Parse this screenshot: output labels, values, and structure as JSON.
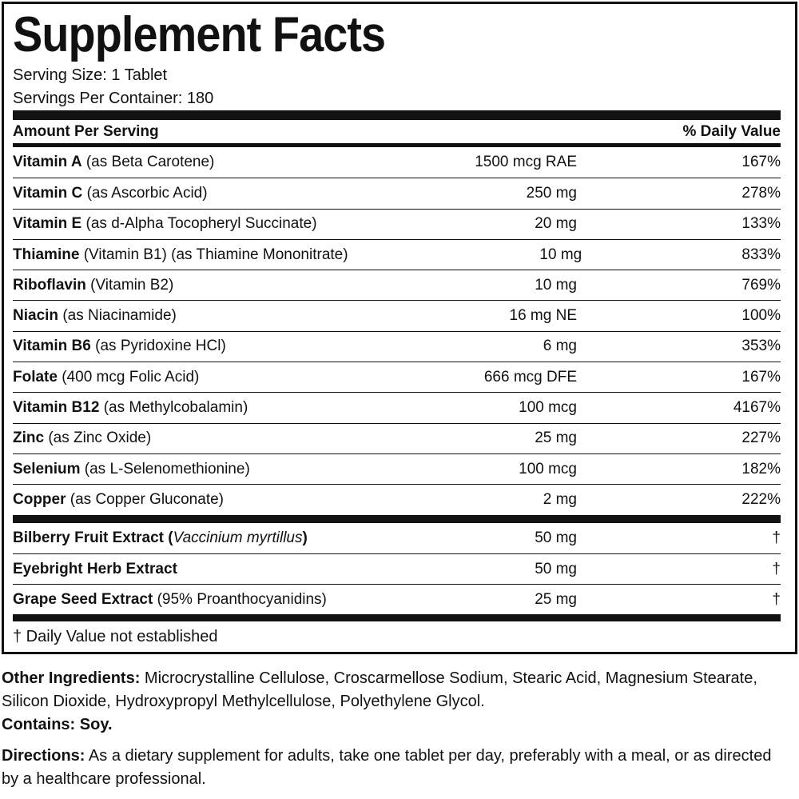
{
  "title": "Supplement Facts",
  "serving_size": "Serving Size: 1 Tablet",
  "servings_per_container": "Servings Per Container: 180",
  "table": {
    "header": [
      "Amount Per Serving",
      "% Daily Value"
    ],
    "groups": [
      [
        {
          "name": "Vitamin A",
          "detail": "(as Beta Carotene)",
          "amount": "1500 mcg RAE",
          "dv": "167%"
        },
        {
          "name": "Vitamin C",
          "detail": "(as Ascorbic Acid)",
          "amount": "250 mg",
          "dv": "278%"
        },
        {
          "name": "Vitamin E",
          "detail": "(as d-Alpha Tocopheryl Succinate)",
          "amount": "20 mg",
          "dv": "133%"
        },
        {
          "name": "Thiamine",
          "detail": "(Vitamin B1) (as Thiamine Mononitrate)",
          "amount": "10 mg",
          "dv": "833%"
        },
        {
          "name": "Riboflavin",
          "detail": "(Vitamin B2)",
          "amount": "10 mg",
          "dv": "769%"
        },
        {
          "name": "Niacin",
          "detail": "(as Niacinamide)",
          "amount": "16 mg NE",
          "dv": "100%"
        },
        {
          "name": "Vitamin B6",
          "detail": "(as Pyridoxine HCl)",
          "amount": "6 mg",
          "dv": "353%"
        },
        {
          "name": "Folate",
          "detail": "(400 mcg Folic Acid)",
          "amount": "666 mcg DFE",
          "dv": "167%"
        },
        {
          "name": "Vitamin B12",
          "detail": "(as Methylcobalamin)",
          "amount": "100 mcg",
          "dv": "4167%"
        },
        {
          "name": "Zinc",
          "detail": "(as Zinc Oxide)",
          "amount": "25 mg",
          "dv": "227%"
        },
        {
          "name": "Selenium",
          "detail": "(as L-Selenomethionine)",
          "amount": "100 mcg",
          "dv": "182%"
        },
        {
          "name": "Copper",
          "detail": "(as Copper Gluconate)",
          "amount": "2 mg",
          "dv": "222%"
        }
      ],
      [
        {
          "name": "Bilberry Fruit Extract (",
          "italic": "Vaccinium myrtillus",
          "name_end": ")",
          "amount": "50 mg",
          "dv": "†"
        },
        {
          "name": "Eyebright Herb Extract",
          "amount": "50 mg",
          "dv": "†"
        },
        {
          "name": "Grape Seed Extract",
          "detail": "(95% Proanthocyanidins)",
          "amount": "25 mg",
          "dv": "†"
        }
      ]
    ]
  },
  "footnote": "† Daily Value not established",
  "other_ingredients": {
    "label": "Other Ingredients:",
    "text": "Microcrystalline Cellulose, Croscarmellose Sodium, Stearic Acid, Magnesium Stearate, Silicon Dioxide, Hydroxypropyl Methylcellulose, Polyethylene Glycol."
  },
  "contains": {
    "label": "Contains:",
    "text": "Soy."
  },
  "directions": {
    "label": "Directions:",
    "text": "As a dietary supplement for adults, take one tablet per day, preferably with a meal, or as directed by a healthcare professional."
  }
}
